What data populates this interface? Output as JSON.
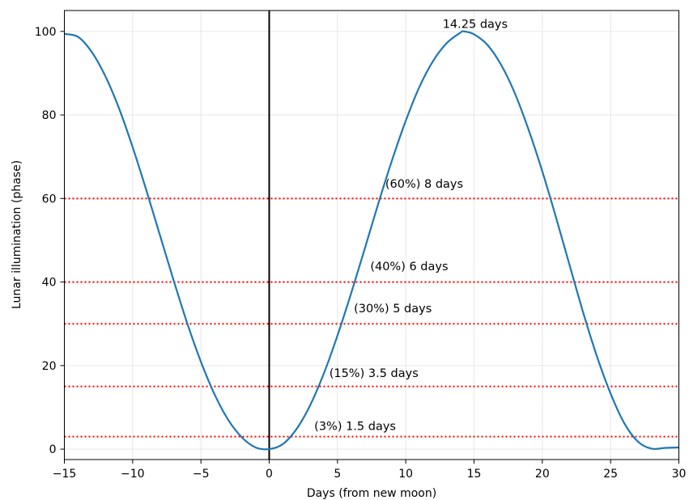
{
  "chart_data": {
    "type": "line",
    "xlabel": "Days (from new moon)",
    "ylabel": "Lunar illumination (phase)",
    "xlim": [
      -15,
      30
    ],
    "ylim": [
      -2.5,
      105
    ],
    "xticks": [
      -15,
      -10,
      -5,
      0,
      5,
      10,
      15,
      20,
      25,
      30
    ],
    "xtick_labels": [
      "−15",
      "−10",
      "−5",
      "0",
      "5",
      "10",
      "15",
      "20",
      "25",
      "30"
    ],
    "yticks": [
      0,
      20,
      40,
      60,
      80,
      100
    ],
    "ytick_labels": [
      "0",
      "20",
      "40",
      "60",
      "80",
      "100"
    ],
    "grid": true,
    "series": [
      {
        "color": "#1f77b4",
        "x": [
          -15,
          -14,
          -13,
          -12,
          -11,
          -10,
          -9,
          -8,
          -7,
          -6,
          -5,
          -4,
          -3,
          -2,
          -1,
          0,
          1,
          2,
          3,
          4,
          5,
          6,
          7,
          8,
          9,
          10,
          11,
          12,
          13,
          14,
          14.25,
          15,
          16,
          17,
          18,
          19,
          20,
          21,
          22,
          23,
          24,
          25,
          26,
          27,
          28,
          29,
          30
        ],
        "y": [
          99.4,
          98.7,
          95.1,
          89.3,
          81.6,
          72.3,
          62.0,
          51.2,
          40.4,
          30.1,
          20.9,
          13.1,
          7.0,
          2.8,
          0.4,
          0.0,
          1.2,
          4.8,
          10.5,
          18.1,
          27.2,
          37.3,
          48.0,
          58.9,
          69.2,
          78.6,
          86.7,
          92.9,
          97.2,
          99.7,
          100.0,
          99.3,
          96.7,
          91.9,
          85.1,
          76.4,
          66.5,
          55.5,
          44.0,
          32.6,
          22.2,
          13.3,
          6.2,
          1.8,
          0.1,
          0.3,
          0.4
        ]
      }
    ],
    "vertical_lines": [
      {
        "x": 0,
        "color": "#000000",
        "style": "solid"
      }
    ],
    "horizontal_lines": [
      {
        "y": 60,
        "color": "#ff0000",
        "style": "dotted"
      },
      {
        "y": 40,
        "color": "#ff0000",
        "style": "dotted"
      },
      {
        "y": 30,
        "color": "#ff0000",
        "style": "dotted"
      },
      {
        "y": 15,
        "color": "#ff0000",
        "style": "dotted"
      },
      {
        "y": 3,
        "color": "#ff0000",
        "style": "dotted"
      }
    ],
    "annotations": [
      {
        "text": "14.25 days",
        "x": 12.7,
        "y": 100.8
      },
      {
        "text": "(60%) 8 days",
        "x": 8.5,
        "y": 62.6
      },
      {
        "text": "(40%) 6 days",
        "x": 7.4,
        "y": 42.8
      },
      {
        "text": "(30%) 5 days",
        "x": 6.2,
        "y": 32.8
      },
      {
        "text": "(15%) 3.5 days",
        "x": 4.4,
        "y": 17.3
      },
      {
        "text": "(3%) 1.5 days",
        "x": 3.3,
        "y": 4.6
      }
    ]
  }
}
